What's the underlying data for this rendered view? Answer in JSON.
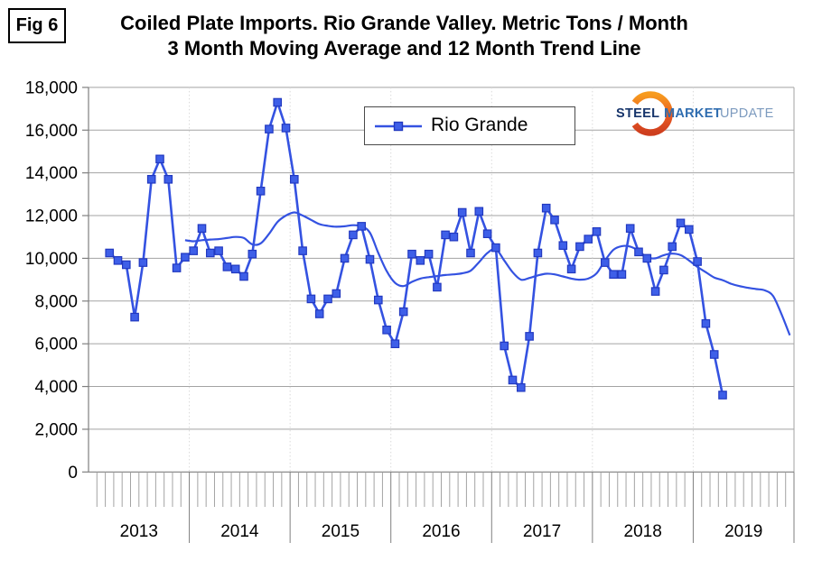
{
  "figure_label": "Fig 6",
  "title": {
    "line1": "Coiled Plate Imports. Rio Grande Valley. Metric Tons / Month",
    "line2": "3 Month Moving Average and 12 Month Trend Line"
  },
  "legend": {
    "label": "Rio Grande"
  },
  "logo": {
    "word1": "STEEL",
    "word2": "MARKET",
    "word3": "UPDATE",
    "accent_color": "#F7941E"
  },
  "colors": {
    "series_line": "#3452E1",
    "marker_fill": "#3E5FE8",
    "marker_border": "#2239C0",
    "trend_line": "#3452E1",
    "gridline": "#A3A3A3",
    "axis": "#7F7F7F",
    "year_guide": "#D9D9D9",
    "text": "#000000"
  },
  "chart_data": {
    "type": "line",
    "title": "Coiled Plate Imports. Rio Grande Valley. Metric Tons / Month",
    "subtitle": "3 Month Moving Average and 12 Month Trend Line",
    "ylim": [
      0,
      18000
    ],
    "ytick_step": 2000,
    "ytick_labels": [
      "0",
      "2,000",
      "4,000",
      "6,000",
      "8,000",
      "10,000",
      "12,000",
      "14,000",
      "16,000",
      "18,000"
    ],
    "x_axis": {
      "year_labels": [
        "2013",
        "2014",
        "2015",
        "2016",
        "2017",
        "2018",
        "2019"
      ],
      "months_per_year": 12,
      "total_months": 84
    },
    "grid": {
      "horizontal": "solid",
      "vertical": "dotted at year boundaries"
    },
    "legend_position": "top-center",
    "series": [
      {
        "name": "Rio Grande",
        "role": "3 month moving average",
        "marker": "square",
        "start_label": "Mar 2013",
        "start_month_index": 2,
        "values": [
          10250,
          9900,
          9700,
          7250,
          9800,
          13700,
          14650,
          13700,
          9550,
          10050,
          10350,
          11400,
          10250,
          10350,
          9600,
          9500,
          9150,
          10200,
          13150,
          16050,
          17300,
          16100,
          13700,
          10350,
          8100,
          7400,
          8100,
          8350,
          10000,
          11100,
          11500,
          9950,
          8050,
          6650,
          6000,
          7500,
          10200,
          9900,
          10200,
          8650,
          11100,
          11000,
          12150,
          10250,
          12200,
          11150,
          10500,
          5900,
          4300,
          3950,
          6350,
          10250,
          12350,
          11800,
          10600,
          9500,
          10550,
          10900,
          11250,
          9800,
          9250,
          9250,
          11400,
          10300,
          10000,
          8450,
          9450,
          10550,
          11650,
          11350,
          9850,
          6950,
          5500,
          3600
        ]
      },
      {
        "name": "12 Month Trend Line",
        "role": "trend",
        "marker": "none",
        "start_label": "Dec 2013",
        "start_month_index": 11,
        "values": [
          10850,
          10800,
          10850,
          10880,
          10900,
          10950,
          11000,
          10950,
          10650,
          10700,
          11150,
          11700,
          12000,
          12150,
          12000,
          11800,
          11600,
          11520,
          11480,
          11500,
          11550,
          11500,
          11200,
          10250,
          9400,
          8850,
          8700,
          8900,
          9050,
          9120,
          9170,
          9220,
          9250,
          9300,
          9420,
          9820,
          10250,
          10430,
          9900,
          9350,
          9000,
          9080,
          9200,
          9280,
          9250,
          9150,
          9050,
          9000,
          9050,
          9300,
          9900,
          10400,
          10570,
          10550,
          10350,
          10050,
          10000,
          10150,
          10220,
          10150,
          9900,
          9600,
          9350,
          9100,
          8980,
          8810,
          8700,
          8620,
          8560,
          8500,
          8240,
          7390,
          6400
        ]
      }
    ]
  }
}
